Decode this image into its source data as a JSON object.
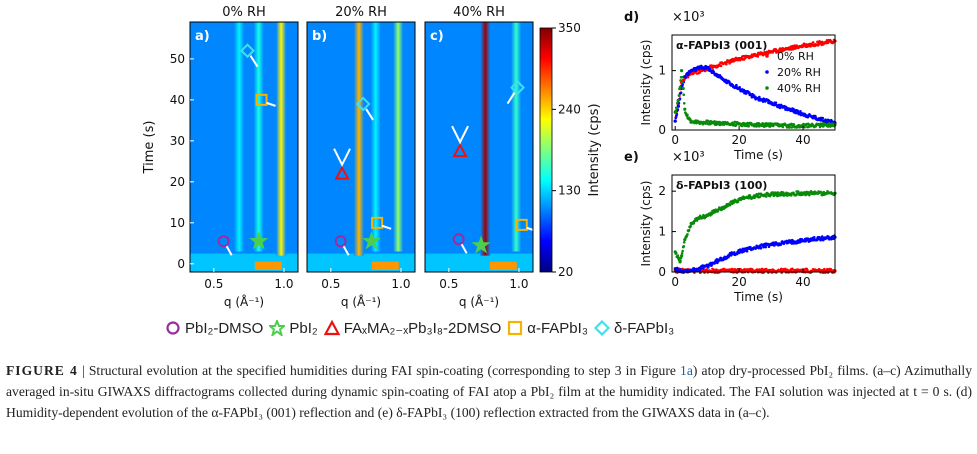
{
  "chart_data": [
    {
      "type": "heatmap",
      "panel": "a)",
      "title": "0% RH",
      "xlabel": "q (Å⁻¹)",
      "ylabel": "Time (s)",
      "xlim": [
        0.33,
        1.1
      ],
      "ylim": [
        -2,
        59
      ],
      "xticks": [
        "0.5",
        "1.0"
      ],
      "yticks": [
        "0",
        "10",
        "20",
        "30",
        "40",
        "50"
      ],
      "streaks": [
        {
          "q": 0.98,
          "t_start": 2,
          "intensity": 230
        },
        {
          "q": 0.82,
          "t_start": 3,
          "intensity": 150
        },
        {
          "q": 0.68,
          "t_start": 3,
          "intensity": 140
        }
      ],
      "markers": [
        {
          "phase": "PbI2-DMSO",
          "q": 0.57,
          "t": 5.5
        },
        {
          "phase": "PbI2",
          "q": 0.82,
          "t": 5.5
        },
        {
          "phase": "α-FAPbI3",
          "q": 0.84,
          "t": 40
        },
        {
          "phase": "δ-FAPbI3",
          "q": 0.74,
          "t": 52
        }
      ]
    },
    {
      "type": "heatmap",
      "panel": "b)",
      "title": "20% RH",
      "xlabel": "q (Å⁻¹)",
      "xlim": [
        0.33,
        1.1
      ],
      "ylim": [
        -2,
        59
      ],
      "xticks": [
        "0.5",
        "1.0"
      ],
      "streaks": [
        {
          "q": 0.7,
          "t_start": 2,
          "intensity": 250
        },
        {
          "q": 0.98,
          "t_start": 3,
          "intensity": 190
        },
        {
          "q": 0.82,
          "t_start": 3,
          "intensity": 140
        }
      ],
      "markers": [
        {
          "phase": "PbI2-DMSO",
          "q": 0.57,
          "t": 5.5
        },
        {
          "phase": "PbI2",
          "q": 0.79,
          "t": 5.5
        },
        {
          "phase": "FAxMA2-xPb3I8-2DMSO",
          "q": 0.58,
          "t": 22
        },
        {
          "phase": "α-FAPbI3",
          "q": 0.83,
          "t": 10
        },
        {
          "phase": "δ-FAPbI3",
          "q": 0.73,
          "t": 39
        }
      ]
    },
    {
      "type": "heatmap",
      "panel": "c)",
      "title": "40% RH",
      "xlabel": "q (Å⁻¹)",
      "xlim": [
        0.33,
        1.1
      ],
      "ylim": [
        -2,
        59
      ],
      "xticks": [
        "0.5",
        "1.0"
      ],
      "streaks": [
        {
          "q": 0.76,
          "t_start": 2,
          "intensity": 340
        },
        {
          "q": 0.98,
          "t_start": 3,
          "intensity": 160
        }
      ],
      "markers": [
        {
          "phase": "PbI2-DMSO",
          "q": 0.57,
          "t": 6
        },
        {
          "phase": "PbI2",
          "q": 0.73,
          "t": 4.5
        },
        {
          "phase": "FAxMA2-xPb3I8-2DMSO",
          "q": 0.58,
          "t": 27.5
        },
        {
          "phase": "α-FAPbI3",
          "q": 1.02,
          "t": 9.5
        },
        {
          "phase": "δ-FAPbI3",
          "q": 0.99,
          "t": 43
        }
      ]
    },
    {
      "type": "colorbar",
      "label": "Intensity (cps)",
      "range": [
        20,
        350
      ],
      "ticks": [
        "20",
        "130",
        "240",
        "350"
      ]
    },
    {
      "type": "scatter",
      "panel": "d)",
      "title": "α-FAPbI3 (001)",
      "xlabel": "Time (s)",
      "ylabel": "Intensity (cps)",
      "multiplier": "×10³",
      "xlim": [
        -1,
        50
      ],
      "ylim": [
        0,
        1.6
      ],
      "xticks": [
        "0",
        "20",
        "40"
      ],
      "yticks": [
        "0",
        "1"
      ],
      "legend": "top-right",
      "series": [
        {
          "name": "0% RH",
          "color": "#ff0000",
          "t": [
            0,
            1,
            2,
            3,
            5,
            8,
            12,
            15,
            20,
            25,
            30,
            35,
            40,
            45,
            50
          ],
          "values": [
            0.15,
            0.45,
            0.8,
            0.88,
            0.95,
            1.0,
            1.07,
            1.12,
            1.2,
            1.26,
            1.32,
            1.37,
            1.42,
            1.46,
            1.5
          ]
        },
        {
          "name": "20% RH",
          "color": "#0000ff",
          "t": [
            0,
            1,
            2,
            3,
            5,
            8,
            10,
            12,
            15,
            20,
            25,
            30,
            35,
            40,
            45,
            50
          ],
          "values": [
            0.15,
            0.4,
            0.7,
            0.9,
            1.0,
            1.05,
            1.05,
            0.97,
            0.85,
            0.7,
            0.55,
            0.46,
            0.36,
            0.27,
            0.19,
            0.12
          ]
        },
        {
          "name": "40% RH",
          "color": "#0a8a0a",
          "t": [
            0,
            1,
            2,
            2.5,
            3,
            4,
            5,
            8,
            12,
            20,
            30,
            40,
            50
          ],
          "values": [
            0.3,
            0.5,
            1.0,
            0.7,
            0.35,
            0.2,
            0.15,
            0.13,
            0.12,
            0.1,
            0.08,
            0.07,
            0.09
          ]
        }
      ]
    },
    {
      "type": "scatter",
      "panel": "e)",
      "title": "δ-FAPbI3 (100)",
      "xlabel": "Time (s)",
      "ylabel": "Intensity (cps)",
      "multiplier": "×10³",
      "xlim": [
        -1,
        50
      ],
      "ylim": [
        0,
        2.4
      ],
      "xticks": [
        "0",
        "20",
        "40"
      ],
      "yticks": [
        "0",
        "1",
        "2"
      ],
      "series": [
        {
          "name": "0% RH",
          "color": "#ff0000",
          "t": [
            0,
            10,
            20,
            30,
            40,
            50
          ],
          "values": [
            0.03,
            0.03,
            0.03,
            0.03,
            0.03,
            0.03
          ]
        },
        {
          "name": "20% RH",
          "color": "#0000ff",
          "t": [
            0,
            1,
            3,
            6,
            10,
            14,
            18,
            22,
            26,
            30,
            36,
            42,
            50
          ],
          "values": [
            0.08,
            0.04,
            0.03,
            0.05,
            0.15,
            0.3,
            0.45,
            0.55,
            0.62,
            0.68,
            0.74,
            0.8,
            0.86
          ]
        },
        {
          "name": "40% RH",
          "color": "#0a8a0a",
          "t": [
            0,
            1,
            1.5,
            2,
            3,
            5,
            8,
            10,
            15,
            20,
            25,
            30,
            40,
            50
          ],
          "values": [
            0.5,
            0.35,
            0.25,
            0.4,
            0.8,
            1.2,
            1.35,
            1.4,
            1.6,
            1.8,
            1.88,
            1.92,
            1.95,
            1.95
          ]
        }
      ]
    }
  ],
  "legend": [
    {
      "label": "PbI₂-DMSO",
      "color": "#9b2d9b",
      "shape": "circle"
    },
    {
      "label": "PbI₂",
      "color": "#4ccf4c",
      "shape": "star"
    },
    {
      "label": "FAₓMA₂₋ₓPb₃I₈-2DMSO",
      "color": "#ee1111",
      "shape": "triangle"
    },
    {
      "label": "α-FAPbI₃",
      "color": "#f5b400",
      "shape": "square"
    },
    {
      "label": "δ-FAPbI₃",
      "color": "#3ee0ee",
      "shape": "diamond"
    }
  ],
  "caption": {
    "label": "FIGURE 4",
    "sep": "|",
    "text1": "Structural evolution at the specified humidities during FAI spin-coating (corresponding to step 3 in Figure ",
    "link": "1a",
    "text2": ") atop dry-processed PbI₂ films. (a–c) Azimuthally averaged in-situ GIWAXS diffractograms collected during dynamic spin-coating of FAI atop a PbI₂ film at the humidity indicated. The FAI solution was injected at t = 0 s. (d) Humidity-dependent evolution of the α-FAPbI₃ (001) reflection and (e) δ-FAPbI₃ (100) reflection extracted from the GIWAXS data in (a–c)."
  }
}
